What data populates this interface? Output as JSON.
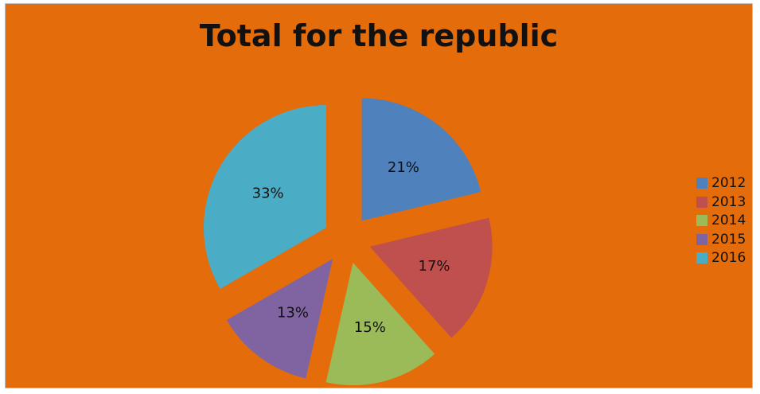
{
  "chart_data": {
    "type": "pie",
    "title": "Total for the republic",
    "categories": [
      "2012",
      "2013",
      "2014",
      "2015",
      "2016"
    ],
    "values": [
      21,
      17,
      15,
      13,
      33
    ],
    "labels": [
      "21%",
      "17%",
      "15%",
      "13%",
      "33%"
    ],
    "colors": [
      "#4f81bd",
      "#c0504d",
      "#9bbb59",
      "#8064a2",
      "#4bacc6"
    ],
    "background": "#e46c0a",
    "exploded": true,
    "legend": "right"
  }
}
